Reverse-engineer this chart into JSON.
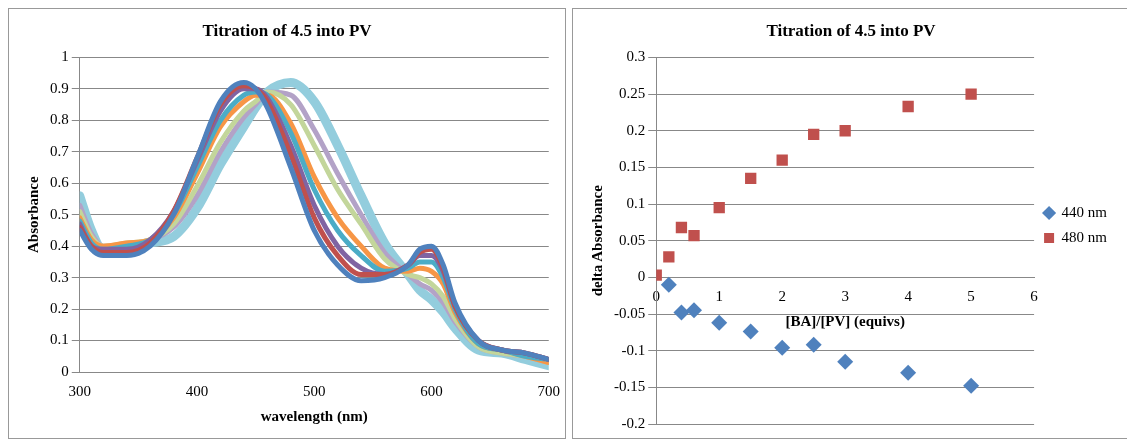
{
  "chart_data": [
    {
      "type": "line",
      "title": "Titration of 4.5 into PV",
      "xlabel": "wavelength (nm)",
      "ylabel": "Absorbance",
      "x": [
        300,
        310,
        320,
        340,
        360,
        380,
        400,
        420,
        440,
        450,
        460,
        480,
        500,
        520,
        540,
        560,
        580,
        590,
        600,
        610,
        620,
        640,
        660,
        680,
        700
      ],
      "series": [
        {
          "color": "#4f81bd",
          "values": [
            0.45,
            0.39,
            0.37,
            0.37,
            0.4,
            0.5,
            0.68,
            0.86,
            0.92,
            0.9,
            0.84,
            0.65,
            0.45,
            0.34,
            0.29,
            0.3,
            0.34,
            0.39,
            0.4,
            0.34,
            0.22,
            0.1,
            0.07,
            0.06,
            0.04
          ]
        },
        {
          "color": "#c0504d",
          "values": [
            0.46,
            0.4,
            0.38,
            0.38,
            0.41,
            0.51,
            0.68,
            0.85,
            0.91,
            0.9,
            0.86,
            0.69,
            0.49,
            0.37,
            0.31,
            0.31,
            0.34,
            0.38,
            0.39,
            0.33,
            0.21,
            0.1,
            0.07,
            0.06,
            0.04
          ]
        },
        {
          "color": "#8064a2",
          "values": [
            0.47,
            0.4,
            0.39,
            0.39,
            0.42,
            0.51,
            0.67,
            0.83,
            0.9,
            0.9,
            0.87,
            0.72,
            0.53,
            0.4,
            0.33,
            0.31,
            0.34,
            0.37,
            0.37,
            0.32,
            0.21,
            0.1,
            0.07,
            0.06,
            0.04
          ]
        },
        {
          "color": "#4bacc6",
          "values": [
            0.48,
            0.41,
            0.39,
            0.4,
            0.42,
            0.5,
            0.65,
            0.8,
            0.88,
            0.89,
            0.88,
            0.76,
            0.58,
            0.45,
            0.37,
            0.32,
            0.33,
            0.35,
            0.35,
            0.3,
            0.2,
            0.09,
            0.07,
            0.05,
            0.04
          ]
        },
        {
          "color": "#f79646",
          "values": [
            0.49,
            0.42,
            0.4,
            0.41,
            0.42,
            0.49,
            0.63,
            0.78,
            0.86,
            0.88,
            0.88,
            0.79,
            0.62,
            0.49,
            0.4,
            0.33,
            0.32,
            0.33,
            0.32,
            0.28,
            0.19,
            0.09,
            0.07,
            0.05,
            0.03
          ]
        },
        {
          "color": "#c3d69b",
          "values": [
            0.51,
            0.43,
            0.4,
            0.41,
            0.42,
            0.47,
            0.59,
            0.73,
            0.83,
            0.86,
            0.89,
            0.85,
            0.72,
            0.58,
            0.47,
            0.36,
            0.31,
            0.3,
            0.28,
            0.24,
            0.17,
            0.08,
            0.06,
            0.05,
            0.03
          ]
        },
        {
          "color": "#b3a2c7",
          "values": [
            0.53,
            0.44,
            0.4,
            null,
            0.42,
            0.46,
            0.56,
            0.7,
            0.81,
            0.85,
            0.89,
            0.88,
            0.77,
            0.63,
            0.5,
            0.38,
            0.31,
            0.28,
            0.26,
            0.22,
            0.16,
            0.08,
            0.06,
            0.05,
            0.03
          ]
        },
        {
          "color": "#93cddd",
          "values": [
            0.56,
            0.45,
            0.39,
            0.4,
            0.41,
            0.43,
            0.52,
            0.66,
            0.78,
            0.84,
            0.89,
            0.92,
            0.86,
            0.72,
            0.56,
            0.41,
            0.31,
            0.26,
            0.23,
            0.19,
            0.14,
            0.07,
            0.06,
            0.04,
            0.02
          ]
        }
      ],
      "xlim": [
        300,
        700
      ],
      "xticks": [
        300,
        400,
        500,
        600,
        700
      ],
      "ylim": [
        0,
        1
      ],
      "yticks": [
        0,
        0.1,
        0.2,
        0.3,
        0.4,
        0.5,
        0.6,
        0.7,
        0.8,
        0.9,
        1
      ],
      "grid": "y",
      "legend": false,
      "marker": "none",
      "line_style": "solid"
    },
    {
      "type": "scatter",
      "title": "Titration of 4.5 into PV",
      "xlabel": "[BA]/[PV] (equivs)",
      "ylabel": "delta Absorbance",
      "series": [
        {
          "name": "440 nm",
          "color": "#4f81bd",
          "marker": "diamond",
          "x": [
            0.2,
            0.4,
            0.6,
            1,
            1.5,
            2,
            2.5,
            3,
            4,
            5
          ],
          "values": [
            -0.01,
            -0.048,
            -0.045,
            -0.062,
            -0.074,
            -0.096,
            -0.092,
            -0.115,
            -0.13,
            -0.148
          ]
        },
        {
          "name": "480 nm",
          "color": "#c0504d",
          "marker": "square",
          "x": [
            0,
            0.2,
            0.4,
            0.6,
            1,
            1.5,
            2,
            2.5,
            3,
            4,
            5
          ],
          "values": [
            0.003,
            0.028,
            0.068,
            0.057,
            0.095,
            0.135,
            0.16,
            0.195,
            0.2,
            0.233,
            0.25
          ]
        }
      ],
      "xlim": [
        0,
        6
      ],
      "xticks": [
        0,
        1,
        2,
        3,
        4,
        5,
        6
      ],
      "ylim": [
        -0.2,
        0.3
      ],
      "yticks": [
        -0.2,
        -0.15,
        -0.1,
        -0.05,
        0,
        0.05,
        0.1,
        0.15,
        0.2,
        0.25,
        0.3
      ],
      "grid": "y",
      "legend": "right"
    }
  ]
}
